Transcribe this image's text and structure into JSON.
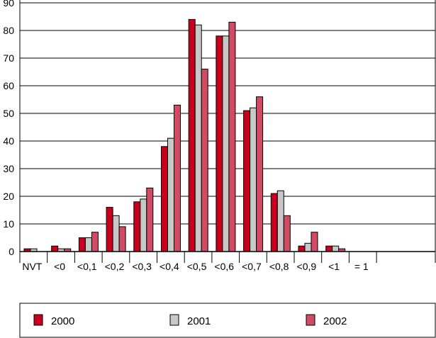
{
  "chart_data": {
    "type": "bar",
    "categories": [
      "NVT",
      "<0",
      "<0,1",
      "<0,2",
      "<0,3",
      "<0,4",
      "<0,5",
      "<0,6",
      "<0,7",
      "<0,8",
      "<0,9",
      "<1",
      "= 1",
      ""
    ],
    "series": [
      {
        "name": "2000",
        "color": "#c8001e",
        "values": [
          1,
          2,
          5,
          16,
          18,
          38,
          84,
          78,
          51,
          21,
          2,
          2,
          0,
          0
        ]
      },
      {
        "name": "2001",
        "color": "#c8c8c8",
        "values": [
          1,
          1,
          5,
          13,
          19,
          41,
          82,
          78,
          52,
          22,
          3,
          2,
          0,
          0
        ]
      },
      {
        "name": "2002",
        "color": "#d24b64",
        "values": [
          null,
          1,
          7,
          9,
          23,
          53,
          66,
          83,
          56,
          13,
          7,
          1,
          0,
          0
        ]
      }
    ],
    "ylim": [
      0,
      90
    ],
    "yticks": [
      0,
      10,
      20,
      30,
      40,
      50,
      60,
      70,
      80,
      90
    ],
    "xlabel": "",
    "ylabel": "",
    "title": "",
    "grid": true,
    "legend_position": "bottom"
  }
}
